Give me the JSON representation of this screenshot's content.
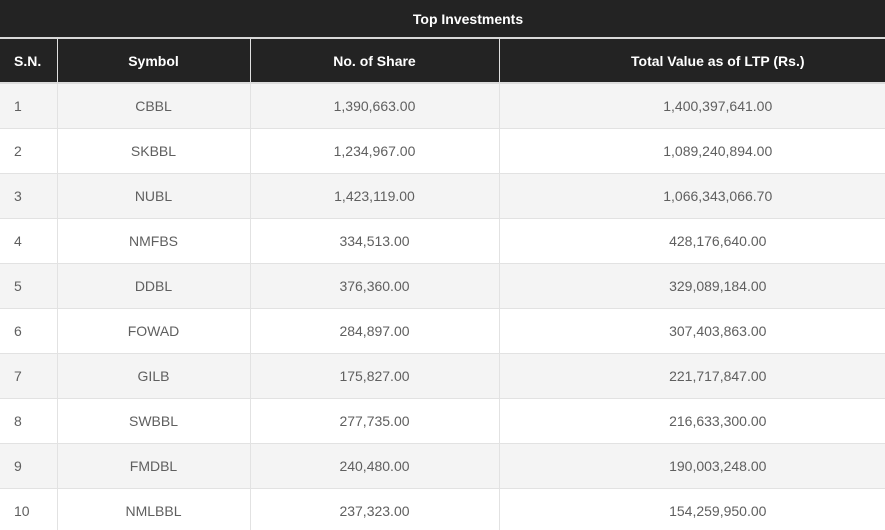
{
  "table": {
    "title": "Top Investments",
    "columns": [
      "S.N.",
      "Symbol",
      "No. of Share",
      "Total Value as of LTP (Rs.)"
    ],
    "rows": [
      {
        "sn": "1",
        "symbol": "CBBL",
        "shares": "1,390,663.00",
        "total": "1,400,397,641.00"
      },
      {
        "sn": "2",
        "symbol": "SKBBL",
        "shares": "1,234,967.00",
        "total": "1,089,240,894.00"
      },
      {
        "sn": "3",
        "symbol": "NUBL",
        "shares": "1,423,119.00",
        "total": "1,066,343,066.70"
      },
      {
        "sn": "4",
        "symbol": "NMFBS",
        "shares": "334,513.00",
        "total": "428,176,640.00"
      },
      {
        "sn": "5",
        "symbol": "DDBL",
        "shares": "376,360.00",
        "total": "329,089,184.00"
      },
      {
        "sn": "6",
        "symbol": "FOWAD",
        "shares": "284,897.00",
        "total": "307,403,863.00"
      },
      {
        "sn": "7",
        "symbol": "GILB",
        "shares": "175,827.00",
        "total": "221,717,847.00"
      },
      {
        "sn": "8",
        "symbol": "SWBBL",
        "shares": "277,735.00",
        "total": "216,633,300.00"
      },
      {
        "sn": "9",
        "symbol": "FMDBL",
        "shares": "240,480.00",
        "total": "190,003,248.00"
      },
      {
        "sn": "10",
        "symbol": "NMLBBL",
        "shares": "237,323.00",
        "total": "154,259,950.00"
      }
    ]
  },
  "colors": {
    "header_bg": "#232323",
    "header_text": "#ffffff",
    "stripe_row_bg": "#f4f4f4",
    "plain_row_bg": "#ffffff",
    "body_text": "#5f5f5f",
    "border": "#e2e2e2"
  }
}
